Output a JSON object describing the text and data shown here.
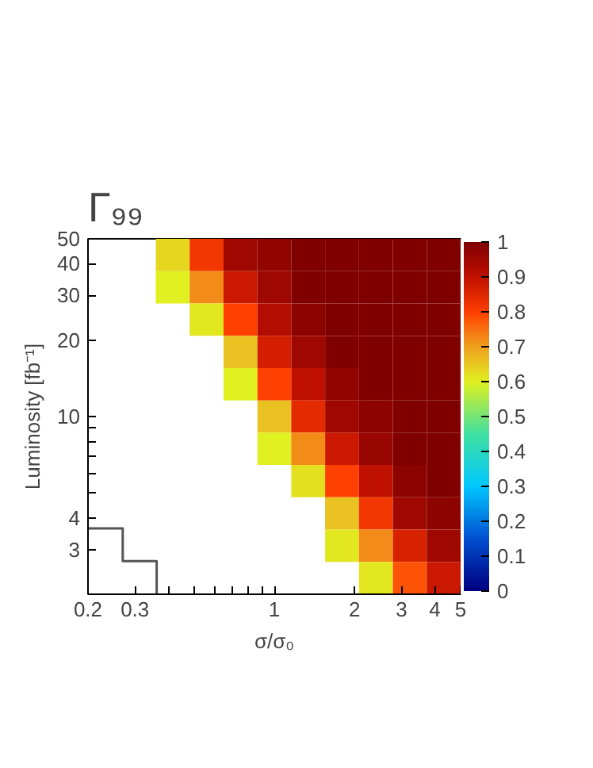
{
  "chart_data": {
    "type": "heatmap",
    "title": "Γ₉₉",
    "xlabel": "σ/σ₀",
    "ylabel": "Luminosity [fb⁻¹]",
    "x": [
      0.232,
      0.31,
      0.416,
      0.557,
      0.747,
      1,
      1.34,
      1.796,
      2.406,
      3.224,
      4.32
    ],
    "y": [
      43.19,
      32.24,
      24.06,
      17.96,
      13.4,
      10,
      7.47,
      5.57,
      4.16,
      3.1,
      2.32
    ],
    "cells": [
      [
        null,
        null,
        0.63,
        0.82,
        0.95,
        0.97,
        1,
        1,
        1,
        1,
        1
      ],
      [
        null,
        null,
        0.6,
        0.72,
        0.88,
        0.95,
        1,
        1,
        1,
        1,
        1
      ],
      [
        null,
        null,
        null,
        0.61,
        0.8,
        0.92,
        0.98,
        1,
        1,
        1,
        1
      ],
      [
        null,
        null,
        null,
        null,
        0.66,
        0.87,
        0.95,
        1,
        1,
        1,
        1
      ],
      [
        null,
        null,
        null,
        null,
        0.6,
        0.8,
        0.9,
        0.97,
        1,
        1,
        1
      ],
      [
        null,
        null,
        null,
        null,
        null,
        0.66,
        0.84,
        0.95,
        0.98,
        1,
        1
      ],
      [
        null,
        null,
        null,
        null,
        null,
        0.6,
        0.72,
        0.88,
        0.96,
        1,
        1
      ],
      [
        null,
        null,
        null,
        null,
        null,
        null,
        0.62,
        0.8,
        0.9,
        0.98,
        1
      ],
      [
        null,
        null,
        null,
        null,
        null,
        null,
        null,
        0.66,
        0.82,
        0.95,
        0.98
      ],
      [
        null,
        null,
        null,
        null,
        null,
        null,
        null,
        0.61,
        0.72,
        0.86,
        0.95
      ],
      [
        null,
        null,
        null,
        null,
        null,
        null,
        null,
        null,
        0.61,
        0.78,
        0.88
      ]
    ],
    "series": [
      {
        "type": "line",
        "color": "#555555",
        "x": [
          0.2,
          0.27,
          0.27,
          0.362,
          0.362
        ],
        "values": [
          3.63,
          3.63,
          2.7,
          2.7,
          2
        ]
      }
    ],
    "log": "xy",
    "xlim": [
      0.2,
      5
    ],
    "ylim": [
      2,
      50
    ],
    "xticks": [
      0.2,
      0.3,
      {
        "value": 0.4,
        "label": null
      },
      {
        "value": 0.5,
        "label": null
      },
      {
        "value": 0.6,
        "label": null
      },
      {
        "value": 0.7,
        "label": null
      },
      {
        "value": 0.8,
        "label": null
      },
      {
        "value": 0.9,
        "label": null
      },
      1,
      2,
      3,
      4,
      5
    ],
    "yticks": [
      3,
      4,
      {
        "value": 5,
        "label": null
      },
      {
        "value": 6,
        "label": null
      },
      {
        "value": 7,
        "label": null
      },
      {
        "value": 8,
        "label": null
      },
      {
        "value": 9,
        "label": null
      },
      10,
      20,
      30,
      40,
      50
    ],
    "clim": [
      0,
      1
    ],
    "cticks": [
      0,
      0.1,
      0.2,
      0.3,
      0.4,
      0.5,
      0.6,
      0.7,
      0.8,
      0.9,
      1
    ]
  }
}
